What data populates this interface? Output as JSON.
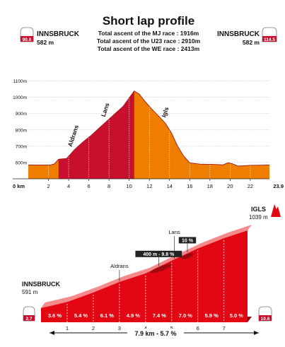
{
  "chart_data": [
    {
      "type": "area",
      "title": "Short lap profile",
      "subtitle_lines": [
        "Total ascent of the MJ race : 1916m",
        "Total ascent of the U23 race : 2910m",
        "Total ascent of the WE race : 2413m"
      ],
      "start_place": "INNSBRUCK",
      "start_alt": "582 m",
      "start_badge": "90.6",
      "end_place": "INNSBRUCK",
      "end_alt": "582 m",
      "end_badge": "114.5",
      "y_ticks": [
        "1100m",
        "1000m",
        "900m",
        "800m",
        "700m",
        "600m"
      ],
      "y_tick_values": [
        1100,
        1000,
        900,
        800,
        700,
        600
      ],
      "x_tick_labels": [
        "0 km",
        "2",
        "4",
        "6",
        "8",
        "10",
        "12",
        "14",
        "16",
        "18",
        "20",
        "22",
        "23.9"
      ],
      "x_tick_values": [
        0,
        2,
        4,
        6,
        8,
        10,
        12,
        14,
        16,
        18,
        20,
        22,
        23.9
      ],
      "xlim": [
        0,
        23.9
      ],
      "ylim": [
        500,
        1120
      ],
      "climb_range": [
        3,
        10.5
      ],
      "annotations": [
        {
          "text": "Aldrans",
          "x": 4.3
        },
        {
          "text": "Lans",
          "x": 7.6
        },
        {
          "text": "Igls",
          "x": 13.6
        }
      ],
      "points": [
        [
          0,
          585
        ],
        [
          2.2,
          585
        ],
        [
          2.6,
          592
        ],
        [
          3.0,
          620
        ],
        [
          3.8,
          625
        ],
        [
          4.6,
          680
        ],
        [
          5.4,
          725
        ],
        [
          6.2,
          765
        ],
        [
          7.0,
          810
        ],
        [
          7.8,
          855
        ],
        [
          8.6,
          900
        ],
        [
          9.4,
          945
        ],
        [
          10.1,
          1005
        ],
        [
          10.5,
          1039
        ],
        [
          11.0,
          1020
        ],
        [
          11.5,
          980
        ],
        [
          12.2,
          930
        ],
        [
          13.0,
          880
        ],
        [
          13.6,
          840
        ],
        [
          14.2,
          780
        ],
        [
          14.8,
          700
        ],
        [
          15.4,
          640
        ],
        [
          16.0,
          598
        ],
        [
          17.0,
          590
        ],
        [
          18.5,
          588
        ],
        [
          19.3,
          586
        ],
        [
          19.8,
          598
        ],
        [
          20.2,
          593
        ],
        [
          20.8,
          578
        ],
        [
          22.0,
          583
        ],
        [
          23.9,
          585
        ]
      ],
      "colors": {
        "flat": "#ef7d00",
        "climb": "#c8102e",
        "climb_dark": "#9e1b22"
      }
    },
    {
      "type": "area",
      "title": "",
      "start_place": "INNSBRUCK",
      "start_alt": "591 m",
      "start_badge": "2.7",
      "end_place": "IGLS",
      "end_alt": "1039 m",
      "end_badge": "10.6",
      "km_labels": [
        "1",
        "2",
        "3",
        "4",
        "5",
        "6",
        "7"
      ],
      "segment_gradients": [
        "3.6 %",
        "5.4 %",
        "6.1 %",
        "4.9 %",
        "7.4 %",
        "7.0 %",
        "5.9 %",
        "5.0 %"
      ],
      "segment_values": [
        3.6,
        5.4,
        6.1,
        4.9,
        7.4,
        7.0,
        5.9,
        5.0
      ],
      "annotations": [
        {
          "text": "Aldrans",
          "x": 3.0
        },
        {
          "text": "Lans",
          "x": 5.1
        },
        {
          "text": "400 m - 9.8 %",
          "x": 4.5,
          "boxed": true
        },
        {
          "text": "10 %",
          "x": 5.6,
          "boxed": true
        }
      ],
      "distance_label": "7.9 km - 5.7 %",
      "xlim": [
        0,
        7.9
      ],
      "ylim": [
        560,
        1060
      ],
      "colors": {
        "fill": "#e30613",
        "side": "#8a0e14",
        "top": "#f48a8a"
      }
    }
  ],
  "colors": {
    "badge_red": "#c8102e",
    "mountain_icon": "#e30613"
  }
}
